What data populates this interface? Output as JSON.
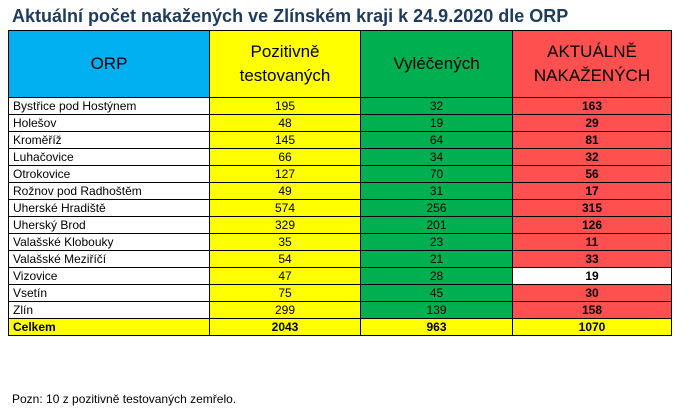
{
  "title": "Aktuální počet nakažených ve Zlínském kraji k 24.9.2020 dle ORP",
  "headers": {
    "orp": "ORP",
    "positive": "Pozitivně testovaných",
    "recovered": "Vyléčených",
    "active": "AKTUÁLNĚ NAKAŽENÝCH"
  },
  "rows": [
    {
      "orp": "Bystřice pod Hostýnem",
      "positive": "195",
      "recovered": "32",
      "active": "163"
    },
    {
      "orp": "Holešov",
      "positive": "48",
      "recovered": "19",
      "active": "29"
    },
    {
      "orp": "Kroměříž",
      "positive": "145",
      "recovered": "64",
      "active": "81"
    },
    {
      "orp": "Luhačovice",
      "positive": "66",
      "recovered": "34",
      "active": "32"
    },
    {
      "orp": "Otrokovice",
      "positive": "127",
      "recovered": "70",
      "active": "56"
    },
    {
      "orp": "Rožnov pod Radhoštěm",
      "positive": "49",
      "recovered": "31",
      "active": "17"
    },
    {
      "orp": "Uherské Hradiště",
      "positive": "574",
      "recovered": "256",
      "active": "315"
    },
    {
      "orp": "Uherský Brod",
      "positive": "329",
      "recovered": "201",
      "active": "126"
    },
    {
      "orp": "Valašské Klobouky",
      "positive": "35",
      "recovered": "23",
      "active": "11"
    },
    {
      "orp": "Valašské Meziříčí",
      "positive": "54",
      "recovered": "21",
      "active": "33"
    },
    {
      "orp": "Vizovice",
      "positive": "47",
      "recovered": "28",
      "active": "19"
    },
    {
      "orp": "Vsetín",
      "positive": "75",
      "recovered": "45",
      "active": "30"
    },
    {
      "orp": "Zlín",
      "positive": "299",
      "recovered": "139",
      "active": "158"
    }
  ],
  "total": {
    "orp": "Celkem",
    "positive": "2043",
    "recovered": "963",
    "active": "1070"
  },
  "note": "Pozn: 10 z pozitivně testovaných zemřelo.",
  "colors": {
    "orp_header": "#00b0f0",
    "positive": "#ffff00",
    "recovered": "#00b050",
    "active": "#ff5050"
  }
}
